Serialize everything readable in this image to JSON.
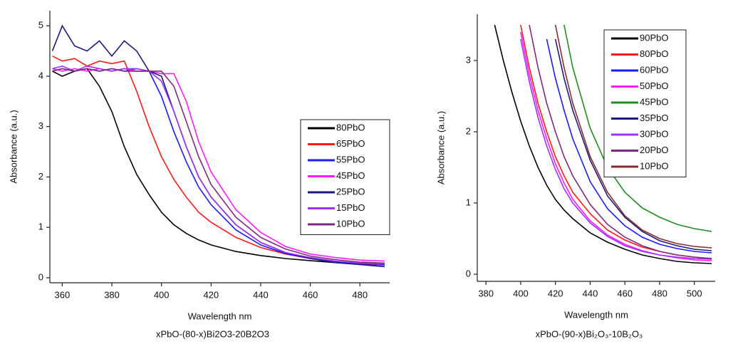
{
  "chart_data": [
    {
      "type": "line",
      "caption": "xPbO-(80-x)Bi2O3-20B2O3",
      "xlabel": "Wavelength nm",
      "ylabel": "Absorbance (a.u.)",
      "xlim": [
        355,
        492
      ],
      "ylim": [
        -0.1,
        5.3
      ],
      "xticks": [
        360,
        380,
        400,
        420,
        440,
        460,
        480
      ],
      "yticks": [
        0,
        1,
        2,
        3,
        4,
        5
      ],
      "legend": "center right",
      "x": [
        356,
        360,
        365,
        370,
        375,
        380,
        385,
        390,
        395,
        400,
        405,
        410,
        415,
        420,
        430,
        440,
        450,
        460,
        470,
        480,
        490
      ],
      "series": [
        {
          "name": "80PbO",
          "color": "#000000",
          "values": [
            4.1,
            4.0,
            4.1,
            4.15,
            3.8,
            3.3,
            2.6,
            2.05,
            1.65,
            1.3,
            1.05,
            0.88,
            0.75,
            0.65,
            0.52,
            0.44,
            0.38,
            0.34,
            0.3,
            0.27,
            0.25
          ]
        },
        {
          "name": "65PbO",
          "color": "#ff1a1a",
          "values": [
            4.4,
            4.3,
            4.35,
            4.2,
            4.3,
            4.25,
            4.3,
            3.7,
            3.0,
            2.4,
            1.95,
            1.6,
            1.3,
            1.1,
            0.8,
            0.6,
            0.47,
            0.38,
            0.32,
            0.28,
            0.25
          ]
        },
        {
          "name": "55PbO",
          "color": "#1a1aff",
          "values": [
            4.1,
            4.15,
            4.1,
            4.15,
            4.1,
            4.15,
            4.1,
            4.15,
            4.1,
            3.6,
            2.9,
            2.3,
            1.8,
            1.45,
            0.95,
            0.65,
            0.48,
            0.38,
            0.32,
            0.28,
            0.26
          ]
        },
        {
          "name": "45PbO",
          "color": "#ff1aff",
          "values": [
            4.15,
            4.1,
            4.15,
            4.1,
            4.15,
            4.1,
            4.15,
            4.1,
            4.1,
            4.05,
            4.05,
            3.5,
            2.7,
            2.1,
            1.35,
            0.9,
            0.62,
            0.47,
            0.4,
            0.35,
            0.33
          ]
        },
        {
          "name": "25PbO",
          "color": "#1a1a80",
          "values": [
            4.5,
            5.0,
            4.6,
            4.5,
            4.7,
            4.4,
            4.7,
            4.5,
            4.1,
            4.0,
            3.3,
            2.6,
            2.0,
            1.6,
            1.05,
            0.7,
            0.5,
            0.38,
            0.3,
            0.26,
            0.22
          ]
        },
        {
          "name": "15PbO",
          "color": "#9b30ff",
          "values": [
            4.15,
            4.2,
            4.1,
            4.2,
            4.15,
            4.1,
            4.15,
            4.15,
            4.1,
            3.9,
            3.3,
            2.6,
            2.0,
            1.6,
            1.05,
            0.7,
            0.5,
            0.4,
            0.33,
            0.29,
            0.27
          ]
        },
        {
          "name": "10PbO",
          "color": "#7d2a7d",
          "values": [
            4.1,
            4.15,
            4.1,
            4.15,
            4.1,
            4.15,
            4.1,
            4.1,
            4.1,
            4.1,
            3.8,
            3.1,
            2.4,
            1.85,
            1.2,
            0.8,
            0.57,
            0.43,
            0.36,
            0.31,
            0.29
          ]
        }
      ]
    },
    {
      "type": "line",
      "caption": "xPbO-(90-x)Bi₂O₃-10B₂O₃",
      "xlabel": "Wavelength nm",
      "ylabel": "Absorbance (a.u.)",
      "xlim": [
        375,
        512
      ],
      "ylim": [
        -0.1,
        3.65
      ],
      "xticks": [
        380,
        400,
        420,
        440,
        460,
        480,
        500
      ],
      "yticks": [
        0,
        1,
        2,
        3
      ],
      "legend": "upper right",
      "x": [
        385,
        390,
        395,
        400,
        405,
        410,
        415,
        420,
        425,
        430,
        440,
        450,
        460,
        470,
        480,
        490,
        500,
        510
      ],
      "series": [
        {
          "name": "90PbO",
          "color": "#000000",
          "values": [
            3.5,
            3.0,
            2.55,
            2.15,
            1.8,
            1.5,
            1.25,
            1.05,
            0.9,
            0.78,
            0.58,
            0.45,
            0.35,
            0.27,
            0.22,
            0.18,
            0.16,
            0.15
          ]
        },
        {
          "name": "80PbO",
          "color": "#ff1a1a",
          "values": [
            null,
            null,
            null,
            3.5,
            2.9,
            2.4,
            2.0,
            1.65,
            1.38,
            1.15,
            0.85,
            0.62,
            0.48,
            0.38,
            0.32,
            0.27,
            0.24,
            0.22
          ]
        },
        {
          "name": "60PbO",
          "color": "#1a1aff",
          "values": [
            null,
            null,
            null,
            null,
            null,
            null,
            3.3,
            2.75,
            2.3,
            1.9,
            1.3,
            0.92,
            0.68,
            0.52,
            0.42,
            0.36,
            0.32,
            0.3
          ]
        },
        {
          "name": "50PbO",
          "color": "#ff1aff",
          "values": [
            null,
            null,
            null,
            3.4,
            2.8,
            2.3,
            1.9,
            1.55,
            1.28,
            1.05,
            0.75,
            0.55,
            0.42,
            0.33,
            0.27,
            0.23,
            0.2,
            0.19
          ]
        },
        {
          "name": "45PbO",
          "color": "#228b22",
          "values": [
            null,
            null,
            null,
            null,
            null,
            null,
            null,
            null,
            3.5,
            2.9,
            2.05,
            1.5,
            1.15,
            0.93,
            0.8,
            0.7,
            0.64,
            0.6
          ]
        },
        {
          "name": "35PbO",
          "color": "#1a1a80",
          "values": [
            null,
            null,
            null,
            null,
            null,
            null,
            null,
            3.3,
            2.75,
            2.3,
            1.6,
            1.1,
            0.8,
            0.6,
            0.47,
            0.4,
            0.35,
            0.33
          ]
        },
        {
          "name": "30PbO",
          "color": "#9b30ff",
          "values": [
            null,
            null,
            null,
            3.3,
            2.7,
            2.2,
            1.8,
            1.47,
            1.2,
            1.0,
            0.72,
            0.53,
            0.4,
            0.32,
            0.27,
            0.24,
            0.22,
            0.21
          ]
        },
        {
          "name": "20PbO",
          "color": "#7d2a7d",
          "values": [
            null,
            null,
            null,
            null,
            3.5,
            2.9,
            2.4,
            2.0,
            1.65,
            1.38,
            0.98,
            0.7,
            0.52,
            0.4,
            0.32,
            0.27,
            0.24,
            0.22
          ]
        },
        {
          "name": "10PbO",
          "color": "#8b2a2a",
          "values": [
            null,
            null,
            null,
            null,
            null,
            null,
            null,
            3.5,
            2.9,
            2.4,
            1.65,
            1.15,
            0.82,
            0.62,
            0.5,
            0.43,
            0.39,
            0.37
          ]
        }
      ]
    }
  ]
}
